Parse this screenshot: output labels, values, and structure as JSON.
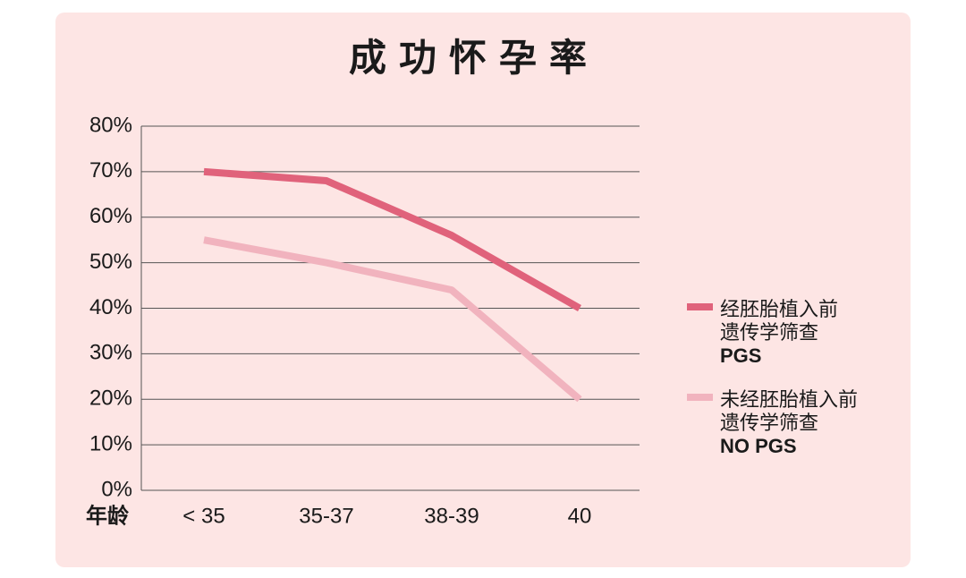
{
  "chart_data": {
    "type": "line",
    "title": "成功怀孕率",
    "xlabel": "年龄",
    "categories": [
      "< 35",
      "35-37",
      "38-39",
      "40"
    ],
    "series": [
      {
        "name": [
          "经胚胎植入前",
          "遗传学筛查",
          "PGS"
        ],
        "color": "#e0627b",
        "values": [
          70,
          68,
          56,
          40
        ]
      },
      {
        "name": [
          "未经胚胎植入前",
          "遗传学筛查",
          "NO PGS"
        ],
        "color": "#f1b3be",
        "values": [
          55,
          50,
          44,
          20
        ]
      }
    ],
    "ylim": [
      0,
      80
    ],
    "yticks": [
      {
        "value": 0,
        "label": "0%"
      },
      {
        "value": 10,
        "label": "10%"
      },
      {
        "value": 20,
        "label": "20%"
      },
      {
        "value": 30,
        "label": "30%"
      },
      {
        "value": 40,
        "label": "40%"
      },
      {
        "value": 50,
        "label": "50%"
      },
      {
        "value": 60,
        "label": "60%"
      },
      {
        "value": 70,
        "label": "70%"
      },
      {
        "value": 80,
        "label": "80%"
      }
    ],
    "grid": true
  }
}
